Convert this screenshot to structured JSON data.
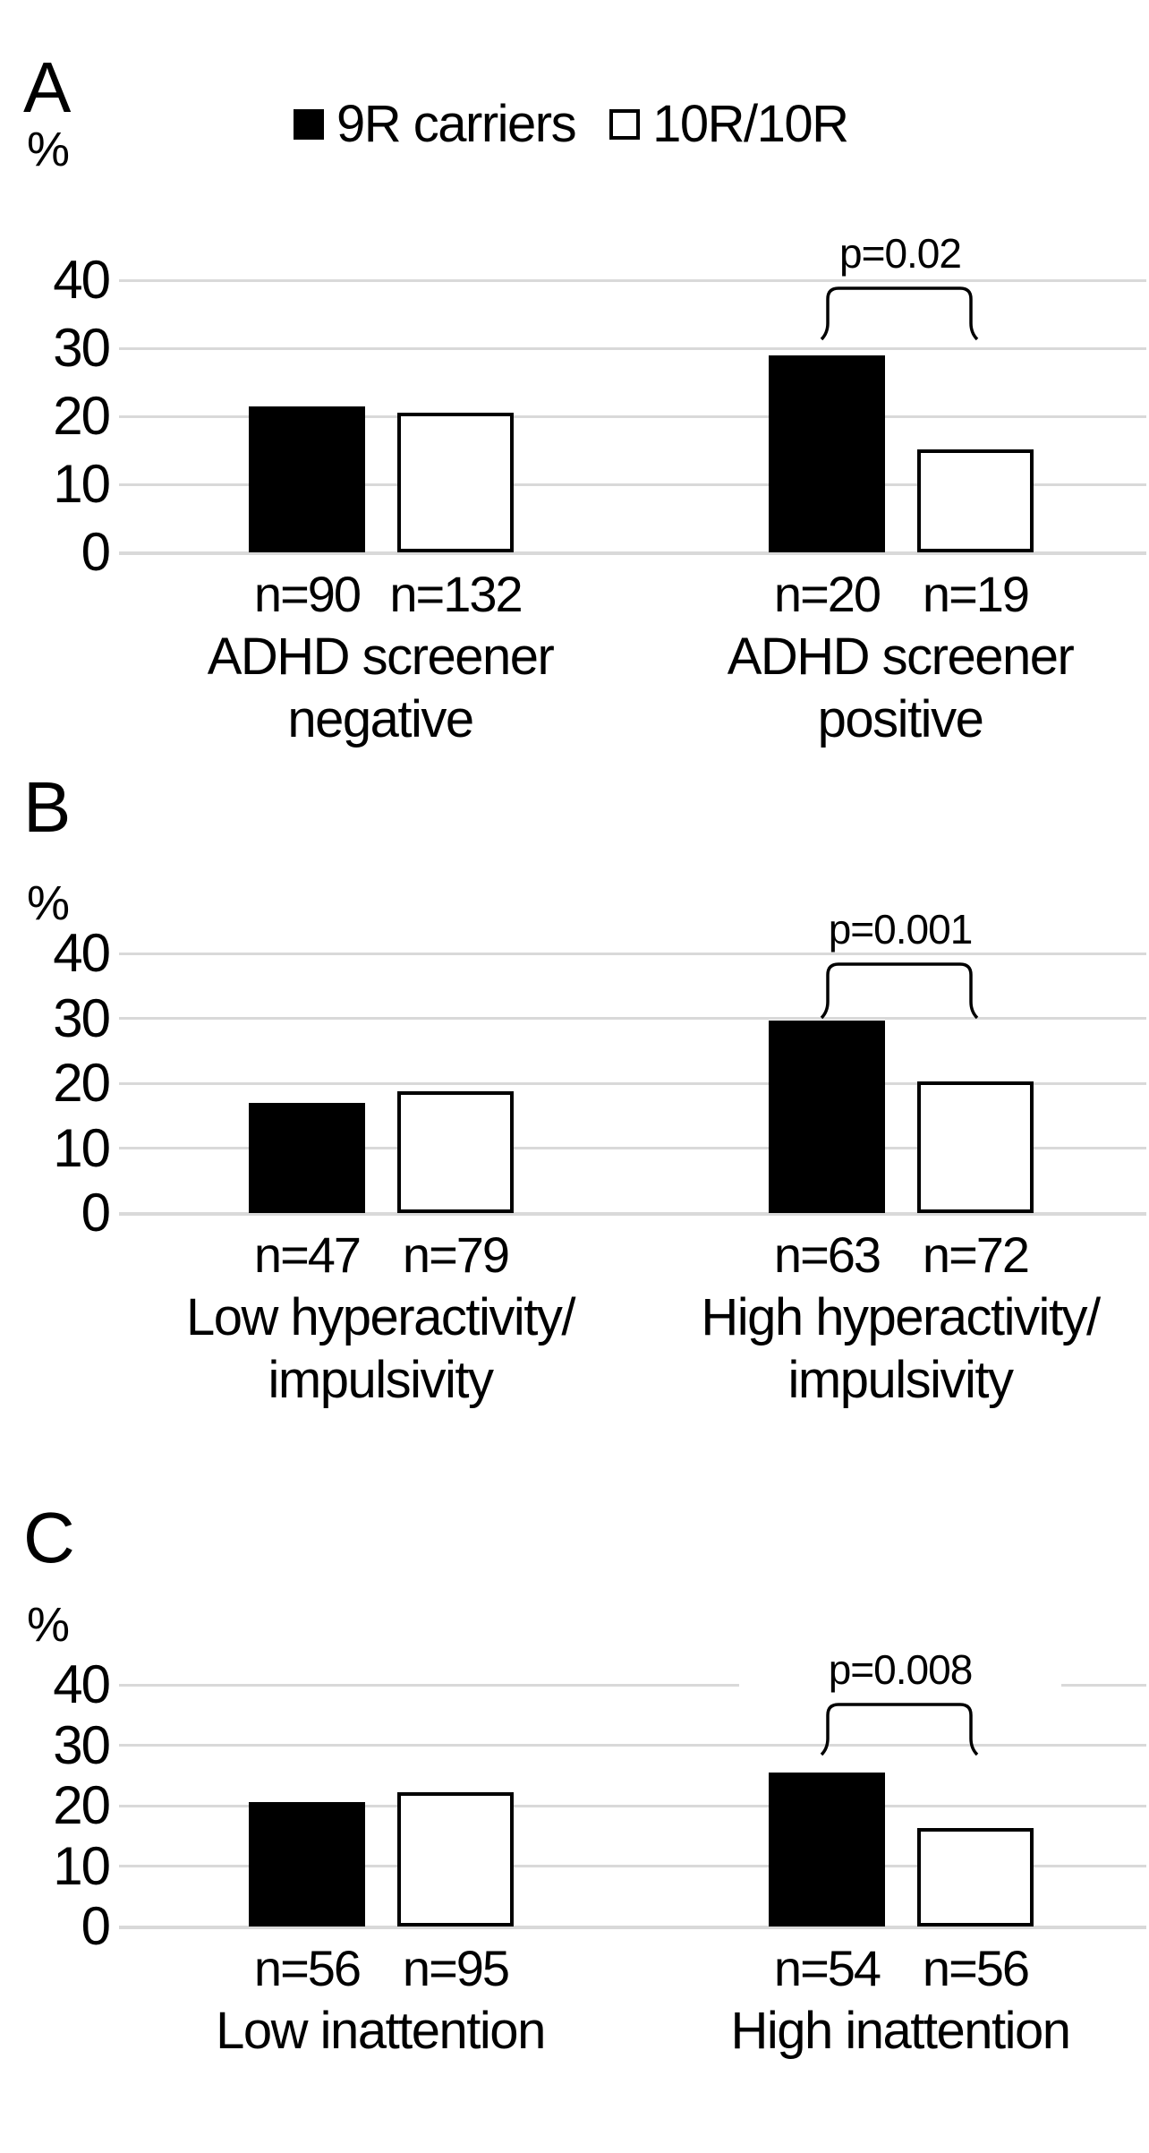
{
  "figure": {
    "background": "#ffffff",
    "legend": {
      "items": [
        {
          "label": "9R carriers",
          "swatch": "filled-black-square"
        },
        {
          "label": "10R/10R",
          "swatch": "outlined-white-square"
        }
      ]
    },
    "colors": {
      "bar_9r_fill": "#000000",
      "bar_10r_fill": "#ffffff",
      "bar_border": "#000000",
      "gridline": "#d9d9d9",
      "text": "#000000"
    }
  },
  "chart_data": [
    {
      "type": "bar",
      "panel_label": "A",
      "ylabel": "%",
      "yticks": [
        0,
        10,
        20,
        30,
        40
      ],
      "ylim": [
        0,
        44
      ],
      "grid": "horizontal",
      "legend_position": "top-center",
      "series": [
        "9R carriers",
        "10R/10R"
      ],
      "groups": [
        {
          "category": "ADHD screener negative",
          "category_lines": [
            "ADHD screener",
            "negative"
          ],
          "bars": [
            {
              "series": "9R carriers",
              "value": 21.5,
              "n": "n=90"
            },
            {
              "series": "10R/10R",
              "value": 20.5,
              "n": "n=132"
            }
          ]
        },
        {
          "category": "ADHD screener positive",
          "category_lines": [
            "ADHD screener",
            "positive"
          ],
          "bars": [
            {
              "series": "9R carriers",
              "value": 28.9,
              "n": "n=20"
            },
            {
              "series": "10R/10R",
              "value": 15.1,
              "n": "n=19"
            }
          ],
          "significance": {
            "label": "p=0.02",
            "between": [
              "9R carriers",
              "10R/10R"
            ]
          }
        }
      ]
    },
    {
      "type": "bar",
      "panel_label": "B",
      "ylabel": "%",
      "yticks": [
        0,
        10,
        20,
        30,
        40
      ],
      "ylim": [
        0,
        44
      ],
      "grid": "horizontal",
      "series": [
        "9R carriers",
        "10R/10R"
      ],
      "groups": [
        {
          "category": "Low hyperactivity/ impulsivity",
          "category_lines": [
            "Low hyperactivity/",
            "impulsivity"
          ],
          "bars": [
            {
              "series": "9R carriers",
              "value": 17.0,
              "n": "n=47"
            },
            {
              "series": "10R/10R",
              "value": 18.7,
              "n": "n=79"
            }
          ]
        },
        {
          "category": "High hyperactivity/ impulsivity",
          "category_lines": [
            "High hyperactivity/",
            "impulsivity"
          ],
          "bars": [
            {
              "series": "9R carriers",
              "value": 29.7,
              "n": "n=63"
            },
            {
              "series": "10R/10R",
              "value": 20.3,
              "n": "n=72"
            }
          ],
          "significance": {
            "label": "p=0.001",
            "between": [
              "9R carriers",
              "10R/10R"
            ]
          }
        }
      ]
    },
    {
      "type": "bar",
      "panel_label": "C",
      "ylabel": "%",
      "yticks": [
        0,
        10,
        20,
        30,
        40
      ],
      "ylim": [
        0,
        44
      ],
      "grid": "horizontal",
      "series": [
        "9R carriers",
        "10R/10R"
      ],
      "groups": [
        {
          "category": "Low inattention",
          "category_lines": [
            "Low inattention"
          ],
          "bars": [
            {
              "series": "9R carriers",
              "value": 20.6,
              "n": "n=56"
            },
            {
              "series": "10R/10R",
              "value": 22.2,
              "n": "n=95"
            }
          ]
        },
        {
          "category": "High inattention",
          "category_lines": [
            "High inattention"
          ],
          "bars": [
            {
              "series": "9R carriers",
              "value": 25.5,
              "n": "n=54"
            },
            {
              "series": "10R/10R",
              "value": 16.3,
              "n": "n=56"
            }
          ],
          "significance": {
            "label": "p=0.008",
            "between": [
              "9R carriers",
              "10R/10R"
            ]
          }
        }
      ]
    }
  ]
}
